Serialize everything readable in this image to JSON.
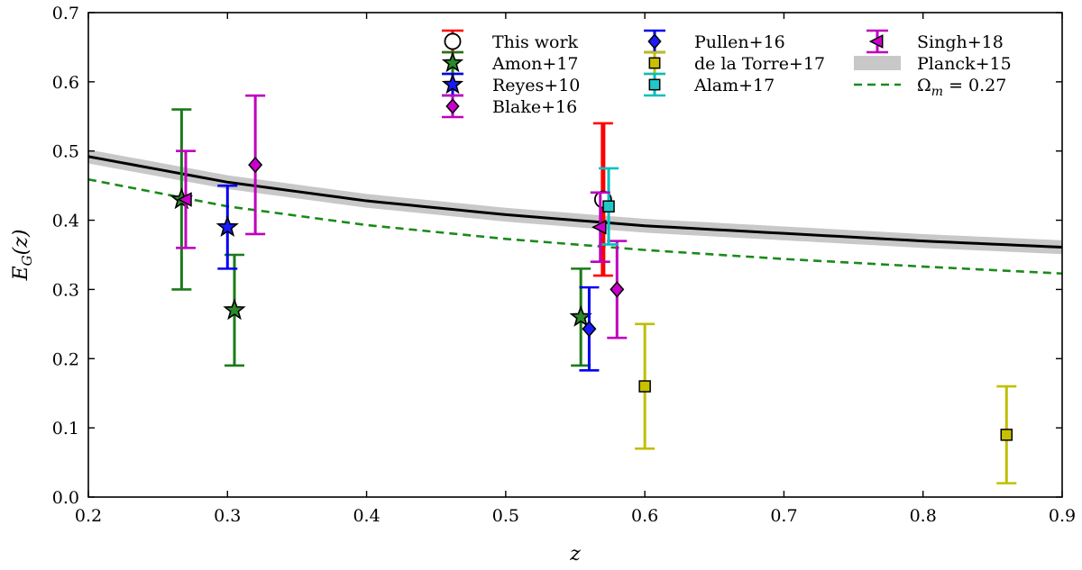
{
  "chart_data": {
    "type": "scatter",
    "xlabel": "z",
    "ylabel": "E_G(z)",
    "xlim": [
      0.2,
      0.9
    ],
    "ylim": [
      0.0,
      0.7
    ],
    "x_ticks": [
      "0.2",
      "0.3",
      "0.4",
      "0.5",
      "0.6",
      "0.7",
      "0.8",
      "0.9"
    ],
    "y_ticks": [
      "0.0",
      "0.1",
      "0.2",
      "0.3",
      "0.4",
      "0.5",
      "0.6",
      "0.7"
    ],
    "grid": false,
    "legend_placement": "top-right",
    "series": [
      {
        "name": "This work",
        "marker": "circle",
        "color": "#ff0000",
        "face": "#ffffff",
        "points": [
          {
            "x": 0.57,
            "y": 0.43,
            "ylo": 0.32,
            "yhi": 0.54
          }
        ]
      },
      {
        "name": "Amon+17",
        "marker": "star",
        "color": "#1a7a1a",
        "face": "#2a8a2a",
        "points": [
          {
            "x": 0.267,
            "y": 0.43,
            "ylo": 0.3,
            "yhi": 0.56
          },
          {
            "x": 0.305,
            "y": 0.27,
            "ylo": 0.19,
            "yhi": 0.35
          },
          {
            "x": 0.554,
            "y": 0.26,
            "ylo": 0.19,
            "yhi": 0.33
          }
        ]
      },
      {
        "name": "Reyes+10",
        "marker": "star",
        "color": "#0000ee",
        "face": "#1a1aff",
        "points": [
          {
            "x": 0.3,
            "y": 0.39,
            "ylo": 0.33,
            "yhi": 0.45
          }
        ]
      },
      {
        "name": "Blake+16",
        "marker": "diamond",
        "color": "#bf00bf",
        "face": "#cc00cc",
        "points": [
          {
            "x": 0.32,
            "y": 0.48,
            "ylo": 0.38,
            "yhi": 0.58
          },
          {
            "x": 0.58,
            "y": 0.3,
            "ylo": 0.23,
            "yhi": 0.37
          }
        ]
      },
      {
        "name": "Pullen+16",
        "marker": "diamond",
        "color": "#0000ee",
        "face": "#1a1aff",
        "points": [
          {
            "x": 0.56,
            "y": 0.243,
            "ylo": 0.183,
            "yhi": 0.303
          }
        ]
      },
      {
        "name": "de la Torre+17",
        "marker": "square",
        "color": "#bfbf00",
        "face": "#c8c000",
        "points": [
          {
            "x": 0.6,
            "y": 0.16,
            "ylo": 0.07,
            "yhi": 0.25
          },
          {
            "x": 0.86,
            "y": 0.09,
            "ylo": 0.02,
            "yhi": 0.16
          }
        ]
      },
      {
        "name": "Alam+17",
        "marker": "square",
        "color": "#00bfbf",
        "face": "#20c8c8",
        "points": [
          {
            "x": 0.574,
            "y": 0.42,
            "ylo": 0.365,
            "yhi": 0.475
          }
        ]
      },
      {
        "name": "Singh+18",
        "marker": "triangle-left",
        "color": "#bf00bf",
        "face": "#cc00cc",
        "points": [
          {
            "x": 0.27,
            "y": 0.43,
            "ylo": 0.36,
            "yhi": 0.5
          },
          {
            "x": 0.568,
            "y": 0.39,
            "ylo": 0.34,
            "yhi": 0.44
          }
        ]
      }
    ],
    "curves": [
      {
        "name": "Planck+15",
        "style": "band",
        "color": "#c8c8c8",
        "x": [
          0.2,
          0.3,
          0.4,
          0.5,
          0.6,
          0.7,
          0.8,
          0.9
        ],
        "y": [
          0.492,
          0.455,
          0.428,
          0.408,
          0.392,
          0.381,
          0.37,
          0.361
        ],
        "half_width": 0.01
      },
      {
        "name": "",
        "style": "solid",
        "color": "#000000",
        "x": [
          0.2,
          0.3,
          0.4,
          0.5,
          0.6,
          0.7,
          0.8,
          0.9
        ],
        "y": [
          0.492,
          0.455,
          0.428,
          0.408,
          0.392,
          0.381,
          0.37,
          0.361
        ]
      },
      {
        "name": "Ω_m = 0.27",
        "style": "dashed",
        "color": "#1a8a1a",
        "x": [
          0.2,
          0.3,
          0.4,
          0.5,
          0.6,
          0.7,
          0.8,
          0.9
        ],
        "y": [
          0.459,
          0.42,
          0.393,
          0.373,
          0.357,
          0.344,
          0.333,
          0.323
        ]
      }
    ],
    "legend": [
      {
        "label": "This work",
        "symbol": "circle",
        "series": 0
      },
      {
        "label": "Amon+17",
        "symbol": "star",
        "series": 1
      },
      {
        "label": "Reyes+10",
        "symbol": "star",
        "series": 2
      },
      {
        "label": "Blake+16",
        "symbol": "diamond",
        "series": 3
      },
      {
        "label": "Pullen+16",
        "symbol": "diamond",
        "series": 4
      },
      {
        "label": "de la Torre+17",
        "symbol": "square",
        "series": 5
      },
      {
        "label": "Alam+17",
        "symbol": "square",
        "series": 6
      },
      {
        "label": "Singh+18",
        "symbol": "triangle-left",
        "series": 7
      },
      {
        "label": "Planck+15",
        "symbol": "band",
        "curve": 0
      },
      {
        "label": "Ω_m = 0.27",
        "symbol": "dashed",
        "curve": 2
      }
    ]
  }
}
